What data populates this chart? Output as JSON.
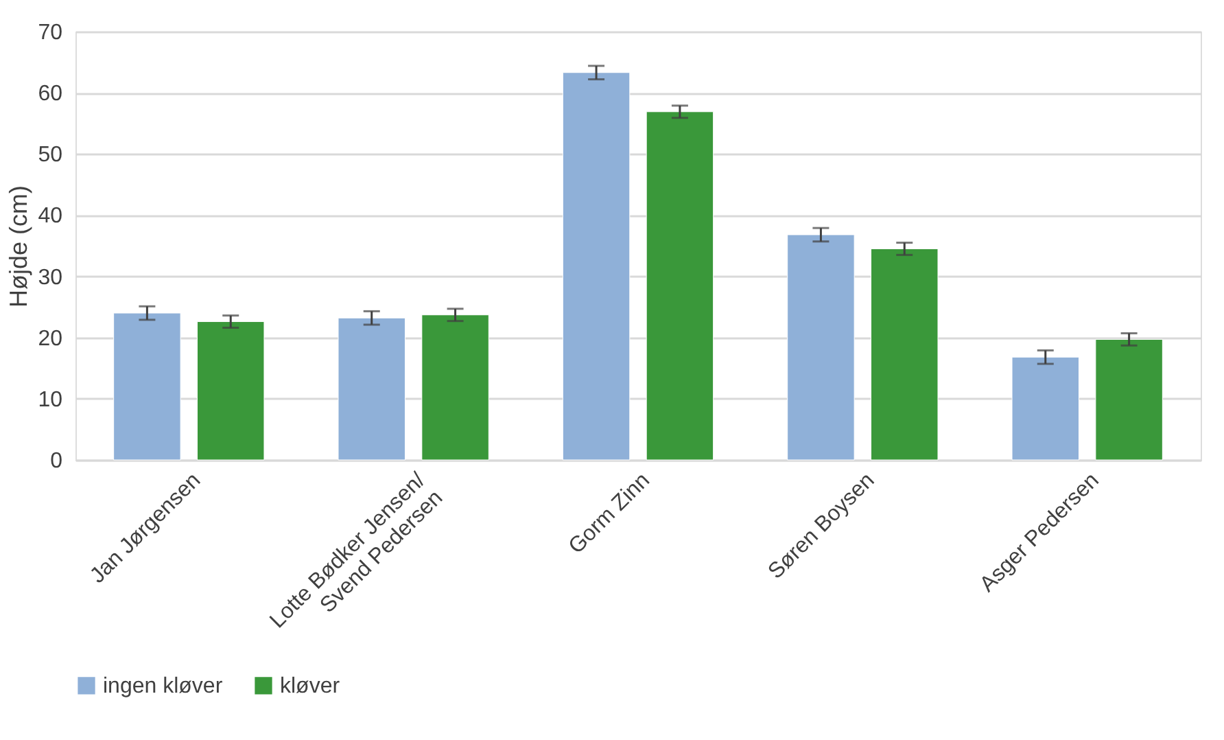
{
  "chart_data": {
    "type": "bar",
    "ylabel": "Højde (cm)",
    "categories": [
      "Jan Jørgensen",
      "Lotte Bødker Jensen/\nSvend Pedersen",
      "Gorm Zinn",
      "Søren Boysen",
      "Asger Pedersen"
    ],
    "series": [
      {
        "name": "ingen kløver",
        "color": "#8fb0d8",
        "values": [
          24.0,
          23.2,
          63.3,
          36.8,
          16.8
        ],
        "errors": [
          1.1,
          1.1,
          1.1,
          1.1,
          1.1
        ]
      },
      {
        "name": "kløver",
        "color": "#3a983a",
        "values": [
          22.6,
          23.7,
          56.9,
          34.5,
          19.7
        ],
        "errors": [
          1.0,
          1.0,
          1.0,
          1.0,
          1.0
        ]
      }
    ],
    "ylim": [
      0,
      70
    ],
    "yticks": [
      0,
      10,
      20,
      30,
      40,
      50,
      60,
      70
    ],
    "grid": "y",
    "legend": "bottom"
  }
}
